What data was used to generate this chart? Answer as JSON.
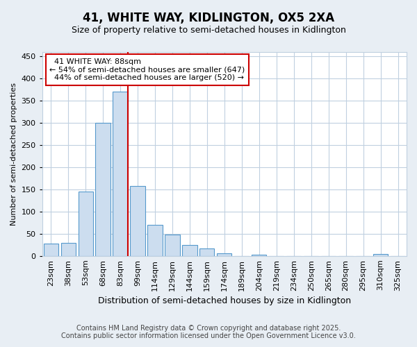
{
  "title": "41, WHITE WAY, KIDLINGTON, OX5 2XA",
  "subtitle": "Size of property relative to semi-detached houses in Kidlington",
  "xlabel": "Distribution of semi-detached houses by size in Kidlington",
  "ylabel": "Number of semi-detached properties",
  "footer1": "Contains HM Land Registry data © Crown copyright and database right 2025.",
  "footer2": "Contains public sector information licensed under the Open Government Licence v3.0.",
  "categories": [
    "23sqm",
    "38sqm",
    "53sqm",
    "68sqm",
    "83sqm",
    "99sqm",
    "114sqm",
    "129sqm",
    "144sqm",
    "159sqm",
    "174sqm",
    "189sqm",
    "204sqm",
    "219sqm",
    "234sqm",
    "250sqm",
    "265sqm",
    "280sqm",
    "295sqm",
    "310sqm",
    "325sqm"
  ],
  "values": [
    28,
    30,
    145,
    300,
    370,
    158,
    70,
    48,
    25,
    17,
    6,
    0,
    3,
    0,
    0,
    0,
    0,
    0,
    0,
    4,
    0
  ],
  "bar_color": "#ccddef",
  "bar_edge_color": "#5599cc",
  "vline_color": "#cc0000",
  "annotation_text": "  41 WHITE WAY: 88sqm\n← 54% of semi-detached houses are smaller (647)\n  44% of semi-detached houses are larger (520) →",
  "annotation_box_color": "#ffffff",
  "annotation_box_edge_color": "#cc0000",
  "ylim": [
    0,
    460
  ],
  "yticks": [
    0,
    50,
    100,
    150,
    200,
    250,
    300,
    350,
    400,
    450
  ],
  "bg_color": "#e8eef4",
  "plot_bg_color": "#ffffff",
  "grid_color": "#c0d0e0",
  "title_fontsize": 12,
  "subtitle_fontsize": 9,
  "xlabel_fontsize": 9,
  "ylabel_fontsize": 8,
  "tick_fontsize": 8,
  "footer_fontsize": 7,
  "annotation_fontsize": 8
}
